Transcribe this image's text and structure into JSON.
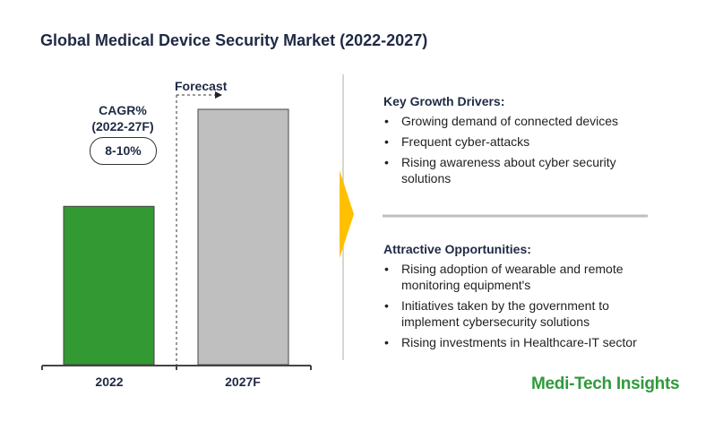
{
  "title": "Global Medical Device Security Market (2022-2027)",
  "chart_data": {
    "type": "bar",
    "categories": [
      "2022",
      "2027F"
    ],
    "values": [
      62,
      100
    ],
    "ylim": [
      0,
      100
    ],
    "xlabel": "",
    "ylabel": "",
    "forecast_label": "Forecast",
    "cagr_label": "CAGR%",
    "cagr_period": "(2022-27F)",
    "cagr_value": "8-10%",
    "colors": [
      "#339933",
      "#bfbfbf"
    ]
  },
  "drivers": {
    "heading": "Key Growth Drivers:",
    "items": [
      "Growing demand of connected devices",
      "Frequent cyber-attacks",
      "Rising awareness about cyber security solutions"
    ]
  },
  "opportunities": {
    "heading": "Attractive Opportunities:",
    "items": [
      "Rising adoption of wearable and remote monitoring equipment's",
      "Initiatives taken by the government to implement cybersecurity solutions",
      "Rising investments in Healthcare-IT sector"
    ]
  },
  "logo": "Medi-Tech Insights",
  "accent": "#ffc000"
}
